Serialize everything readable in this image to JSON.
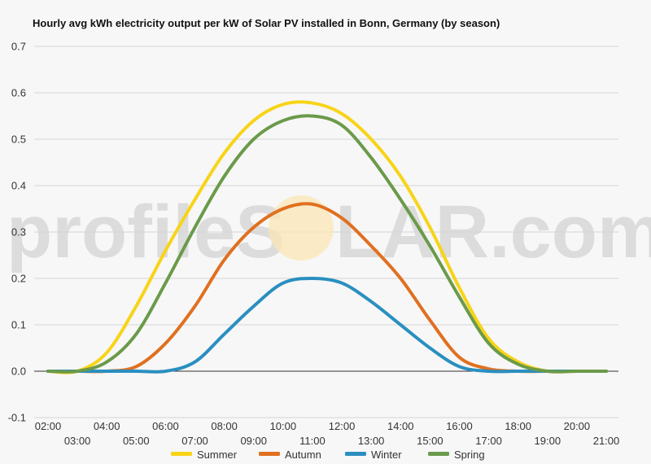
{
  "chart_data": {
    "type": "line",
    "title": "Hourly avg kWh electricity output per kW of Solar PV installed in Bonn, Germany (by season)",
    "xlabel": "",
    "ylabel": "",
    "x": [
      "02:00",
      "03:00",
      "04:00",
      "05:00",
      "06:00",
      "07:00",
      "08:00",
      "09:00",
      "10:00",
      "11:00",
      "12:00",
      "13:00",
      "14:00",
      "15:00",
      "16:00",
      "17:00",
      "18:00",
      "19:00",
      "20:00",
      "21:00"
    ],
    "ylim": [
      -0.1,
      0.7
    ],
    "yticks": [
      "-0.1",
      "0.0",
      "0.1",
      "0.2",
      "0.3",
      "0.4",
      "0.5",
      "0.6",
      "0.7"
    ],
    "grid": true,
    "legend_position": "bottom",
    "series": [
      {
        "name": "Summer",
        "color": "#f7d417",
        "values": [
          0.0,
          0.0,
          0.04,
          0.14,
          0.26,
          0.37,
          0.47,
          0.54,
          0.575,
          0.578,
          0.555,
          0.5,
          0.42,
          0.31,
          0.18,
          0.07,
          0.02,
          0.0,
          0.0,
          0.0
        ]
      },
      {
        "name": "Autumn",
        "color": "#e07020",
        "values": [
          0.0,
          0.0,
          0.0,
          0.01,
          0.06,
          0.14,
          0.24,
          0.31,
          0.35,
          0.36,
          0.33,
          0.27,
          0.2,
          0.11,
          0.03,
          0.005,
          0.0,
          0.0,
          0.0,
          0.0
        ]
      },
      {
        "name": "Winter",
        "color": "#2a8fc0",
        "values": [
          0.0,
          0.0,
          0.0,
          0.0,
          0.0,
          0.02,
          0.08,
          0.14,
          0.19,
          0.2,
          0.19,
          0.15,
          0.1,
          0.05,
          0.01,
          0.0,
          0.0,
          0.0,
          0.0,
          0.0
        ]
      },
      {
        "name": "Spring",
        "color": "#6b9a4a",
        "values": [
          0.0,
          0.0,
          0.02,
          0.08,
          0.19,
          0.31,
          0.42,
          0.5,
          0.54,
          0.55,
          0.53,
          0.46,
          0.37,
          0.27,
          0.16,
          0.06,
          0.015,
          0.0,
          0.0,
          0.0
        ]
      }
    ]
  },
  "watermark": {
    "text_left": "profileS",
    "text_right": "LAR.com"
  }
}
